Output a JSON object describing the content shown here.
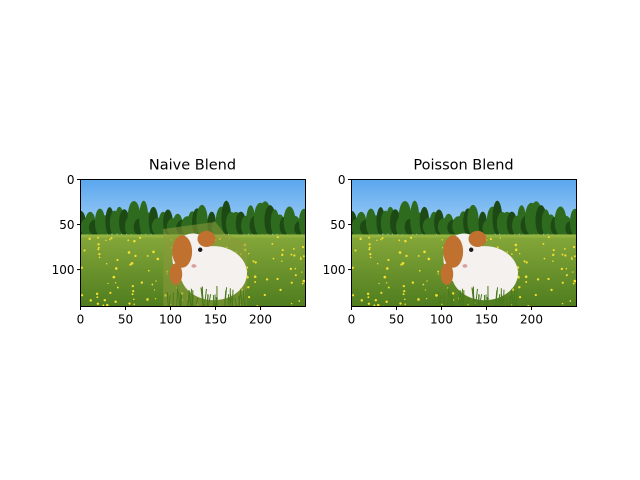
{
  "figure": {
    "background": "#ffffff"
  },
  "chart_data": [
    {
      "type": "image",
      "title": "Naive Blend",
      "image_width": 250,
      "image_height": 141,
      "xlim": [
        0,
        250
      ],
      "ylim": [
        141,
        0
      ],
      "x_ticks": [
        0,
        50,
        100,
        150,
        200
      ],
      "y_ticks": [
        0,
        50,
        100
      ],
      "content": "meadow-guinea-pig-naive"
    },
    {
      "type": "image",
      "title": "Poisson Blend",
      "image_width": 250,
      "image_height": 141,
      "xlim": [
        0,
        250
      ],
      "ylim": [
        141,
        0
      ],
      "x_ticks": [
        0,
        50,
        100,
        150,
        200
      ],
      "y_ticks": [
        0,
        50,
        100
      ],
      "content": "meadow-guinea-pig-poisson"
    }
  ],
  "colors": {
    "sky_top": "#5aa6ee",
    "sky_bottom": "#a9d3f6",
    "trees": "#2f6b1f",
    "trees_dark": "#1d4a14",
    "grass": "#6f9a2c",
    "grass_dark": "#4a7a1e",
    "flowers": "#f3df2e",
    "fur_white": "#f4f1ee",
    "fur_orange": "#c0712f",
    "patch_naive": "#8a9a3a"
  }
}
